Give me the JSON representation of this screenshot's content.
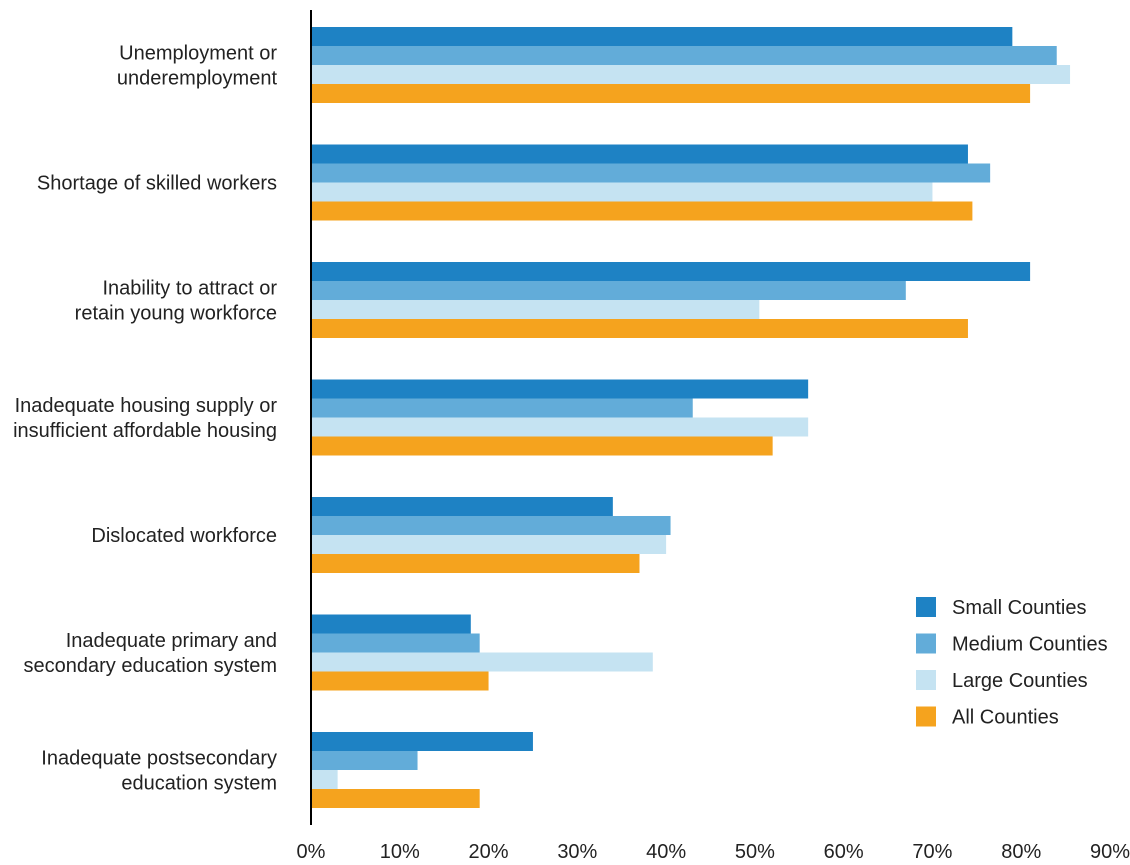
{
  "chart_data": {
    "type": "bar",
    "orientation": "horizontal",
    "categories": [
      [
        "Unemployment or",
        "underemployment"
      ],
      [
        "Shortage of skilled workers"
      ],
      [
        "Inability to attract or",
        "retain young workforce"
      ],
      [
        "Inadequate housing supply or",
        "insufficient affordable housing"
      ],
      [
        "Dislocated workforce"
      ],
      [
        "Inadequate primary and",
        "secondary education system"
      ],
      [
        "Inadequate postsecondary",
        "education system"
      ]
    ],
    "series": [
      {
        "name": "Small Counties",
        "color": "#1e82c4",
        "values": [
          79,
          74,
          81,
          56,
          34,
          18,
          25
        ]
      },
      {
        "name": "Medium Counties",
        "color": "#62acd9",
        "values": [
          84,
          76.5,
          67,
          43,
          40.5,
          19,
          12
        ]
      },
      {
        "name": "Large Counties",
        "color": "#c5e3f2",
        "values": [
          85.5,
          70,
          50.5,
          56,
          40,
          38.5,
          3
        ]
      },
      {
        "name": "All Counties",
        "color": "#f5a31e",
        "values": [
          81,
          74.5,
          74,
          52,
          37,
          20,
          19
        ]
      }
    ],
    "xlim": [
      0,
      90
    ],
    "xticks": [
      "0%",
      "10%",
      "20%",
      "30%",
      "40%",
      "50%",
      "60%",
      "70%",
      "80%",
      "90%"
    ],
    "title": "",
    "xlabel": "",
    "ylabel": "",
    "grid": false,
    "legend_position": "bottom-right"
  }
}
